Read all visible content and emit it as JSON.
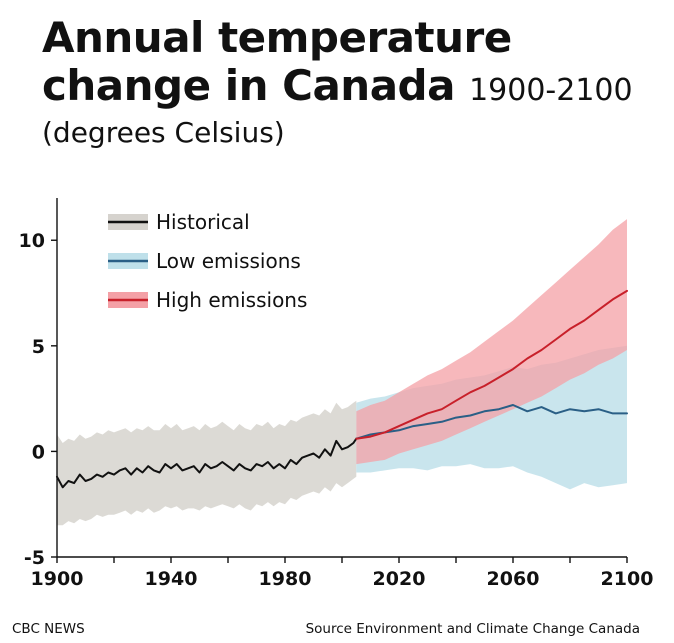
{
  "title_line1": "Annual temperature",
  "title_line2": "change in Canada",
  "title_span": "1900-2100",
  "subtitle": "(degrees Celsius)",
  "footer_left": "CBC NEWS",
  "footer_right": "Source Environment and Climate Change Canada",
  "colors": {
    "historical": "#111111",
    "historical_band": "#d6d3ce",
    "low": "#2a5f86",
    "low_band": "#bfe0ea",
    "high": "#c8202a",
    "high_band": "#f4a0a6"
  },
  "chart_data": {
    "type": "line",
    "title": "Annual temperature change in Canada",
    "subtitle": "(degrees Celsius)",
    "xlabel": "",
    "ylabel": "",
    "xlim": [
      1900,
      2100
    ],
    "ylim": [
      -5,
      12
    ],
    "x_ticks": [
      1900,
      1940,
      1980,
      2020,
      2060,
      2100
    ],
    "y_ticks": [
      -5,
      0,
      5,
      10
    ],
    "legend": {
      "position": "top-left",
      "entries": [
        "Historical",
        "Low emissions",
        "High emissions"
      ]
    },
    "series": [
      {
        "name": "Historical",
        "x": [
          1900,
          1902,
          1904,
          1906,
          1908,
          1910,
          1912,
          1914,
          1916,
          1918,
          1920,
          1922,
          1924,
          1926,
          1928,
          1930,
          1932,
          1934,
          1936,
          1938,
          1940,
          1942,
          1944,
          1946,
          1948,
          1950,
          1952,
          1954,
          1956,
          1958,
          1960,
          1962,
          1964,
          1966,
          1968,
          1970,
          1972,
          1974,
          1976,
          1978,
          1980,
          1982,
          1984,
          1986,
          1988,
          1990,
          1992,
          1994,
          1996,
          1998,
          2000,
          2002,
          2004,
          2005
        ],
        "values": [
          -1.2,
          -1.7,
          -1.4,
          -1.5,
          -1.1,
          -1.4,
          -1.3,
          -1.1,
          -1.2,
          -1.0,
          -1.1,
          -0.9,
          -0.8,
          -1.1,
          -0.8,
          -1.0,
          -0.7,
          -0.9,
          -1.0,
          -0.6,
          -0.8,
          -0.6,
          -0.9,
          -0.8,
          -0.7,
          -1.0,
          -0.6,
          -0.8,
          -0.7,
          -0.5,
          -0.7,
          -0.9,
          -0.6,
          -0.8,
          -0.9,
          -0.6,
          -0.7,
          -0.5,
          -0.8,
          -0.6,
          -0.8,
          -0.4,
          -0.6,
          -0.3,
          -0.2,
          -0.1,
          -0.3,
          0.1,
          -0.2,
          0.5,
          0.1,
          0.2,
          0.4,
          0.6
        ],
        "band_lower": [
          -3.5,
          -3.5,
          -3.3,
          -3.4,
          -3.2,
          -3.3,
          -3.2,
          -3.0,
          -3.1,
          -3.0,
          -3.0,
          -2.9,
          -2.8,
          -3.0,
          -2.8,
          -2.9,
          -2.7,
          -2.9,
          -2.8,
          -2.6,
          -2.7,
          -2.6,
          -2.8,
          -2.7,
          -2.7,
          -2.8,
          -2.6,
          -2.7,
          -2.6,
          -2.5,
          -2.6,
          -2.7,
          -2.5,
          -2.7,
          -2.8,
          -2.5,
          -2.6,
          -2.4,
          -2.6,
          -2.4,
          -2.5,
          -2.2,
          -2.3,
          -2.1,
          -2.0,
          -1.9,
          -2.0,
          -1.7,
          -1.9,
          -1.5,
          -1.7,
          -1.5,
          -1.3,
          -1.2
        ],
        "band_upper": [
          0.8,
          0.4,
          0.6,
          0.5,
          0.8,
          0.6,
          0.7,
          0.9,
          0.8,
          1.0,
          0.9,
          1.0,
          1.1,
          0.9,
          1.1,
          1.0,
          1.2,
          1.0,
          1.0,
          1.3,
          1.1,
          1.3,
          1.0,
          1.1,
          1.2,
          1.0,
          1.3,
          1.1,
          1.2,
          1.4,
          1.2,
          1.0,
          1.3,
          1.1,
          1.0,
          1.3,
          1.2,
          1.4,
          1.1,
          1.3,
          1.2,
          1.5,
          1.4,
          1.6,
          1.7,
          1.8,
          1.7,
          2.0,
          1.8,
          2.3,
          2.0,
          2.1,
          2.3,
          2.4
        ]
      },
      {
        "name": "Low emissions",
        "x": [
          2005,
          2010,
          2015,
          2020,
          2025,
          2030,
          2035,
          2040,
          2045,
          2050,
          2055,
          2060,
          2065,
          2070,
          2075,
          2080,
          2085,
          2090,
          2095,
          2100
        ],
        "values": [
          0.6,
          0.8,
          0.9,
          1.0,
          1.2,
          1.3,
          1.4,
          1.6,
          1.7,
          1.9,
          2.0,
          2.2,
          1.9,
          2.1,
          1.8,
          2.0,
          1.9,
          2.0,
          1.8,
          1.8
        ],
        "band_lower": [
          -1.0,
          -1.0,
          -0.9,
          -0.8,
          -0.8,
          -0.9,
          -0.7,
          -0.7,
          -0.6,
          -0.8,
          -0.8,
          -0.7,
          -1.0,
          -1.2,
          -1.5,
          -1.8,
          -1.5,
          -1.7,
          -1.6,
          -1.5
        ],
        "band_upper": [
          2.3,
          2.5,
          2.6,
          2.8,
          3.0,
          3.1,
          3.2,
          3.4,
          3.5,
          3.6,
          3.8,
          4.0,
          3.9,
          4.1,
          4.2,
          4.4,
          4.6,
          4.8,
          4.9,
          5.0
        ]
      },
      {
        "name": "High emissions",
        "x": [
          2005,
          2010,
          2015,
          2020,
          2025,
          2030,
          2035,
          2040,
          2045,
          2050,
          2055,
          2060,
          2065,
          2070,
          2075,
          2080,
          2085,
          2090,
          2095,
          2100
        ],
        "values": [
          0.6,
          0.7,
          0.9,
          1.2,
          1.5,
          1.8,
          2.0,
          2.4,
          2.8,
          3.1,
          3.5,
          3.9,
          4.4,
          4.8,
          5.3,
          5.8,
          6.2,
          6.7,
          7.2,
          7.6
        ],
        "band_lower": [
          -0.6,
          -0.5,
          -0.4,
          -0.1,
          0.1,
          0.3,
          0.5,
          0.8,
          1.1,
          1.4,
          1.7,
          2.0,
          2.3,
          2.6,
          3.0,
          3.4,
          3.7,
          4.1,
          4.4,
          4.8
        ],
        "band_upper": [
          1.9,
          2.2,
          2.4,
          2.8,
          3.2,
          3.6,
          3.9,
          4.3,
          4.7,
          5.2,
          5.7,
          6.2,
          6.8,
          7.4,
          8.0,
          8.6,
          9.2,
          9.8,
          10.5,
          11.0
        ]
      }
    ]
  }
}
